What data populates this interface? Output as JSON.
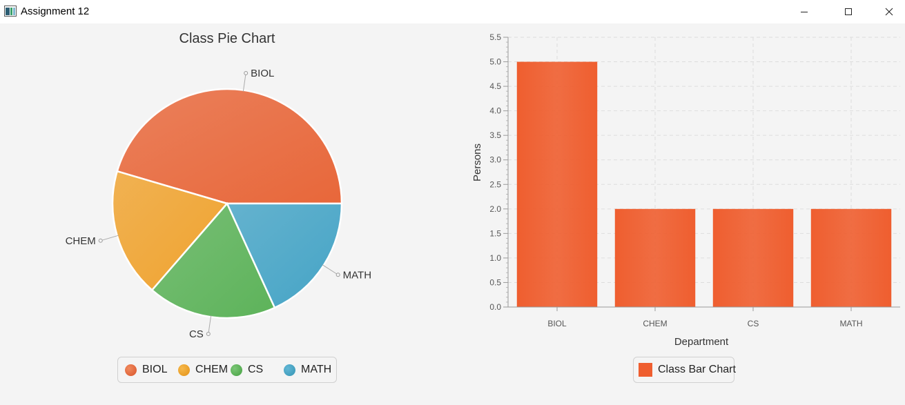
{
  "window": {
    "title": "Assignment 12",
    "controls": [
      "minimize",
      "maximize",
      "close"
    ]
  },
  "pie_chart": {
    "title": "Class Pie Chart",
    "legend": [
      "BIOL",
      "CHEM",
      "CS",
      "MATH"
    ]
  },
  "bar_chart": {
    "xlabel": "Department",
    "ylabel": "Persons",
    "legend": "Class Bar Chart"
  },
  "colors": {
    "BIOL": "#e8673a",
    "CHEM": "#f0a32f",
    "CS": "#5db35a",
    "MATH": "#45a4c6",
    "bar": "#ef5e2f"
  },
  "chart_data": [
    {
      "type": "pie",
      "title": "Class Pie Chart",
      "categories": [
        "BIOL",
        "CHEM",
        "CS",
        "MATH"
      ],
      "values": [
        5,
        2,
        2,
        2
      ],
      "legend_position": "bottom"
    },
    {
      "type": "bar",
      "categories": [
        "BIOL",
        "CHEM",
        "CS",
        "MATH"
      ],
      "series": [
        {
          "name": "Class Bar Chart",
          "values": [
            5,
            2,
            2,
            2
          ]
        }
      ],
      "xlabel": "Department",
      "ylabel": "Persons",
      "ylim": [
        0,
        5.5
      ],
      "yticks": [
        "0.0",
        "0.5",
        "1.0",
        "1.5",
        "2.0",
        "2.5",
        "3.0",
        "3.5",
        "4.0",
        "4.5",
        "5.0",
        "5.5"
      ],
      "grid": true,
      "legend_position": "bottom"
    }
  ]
}
